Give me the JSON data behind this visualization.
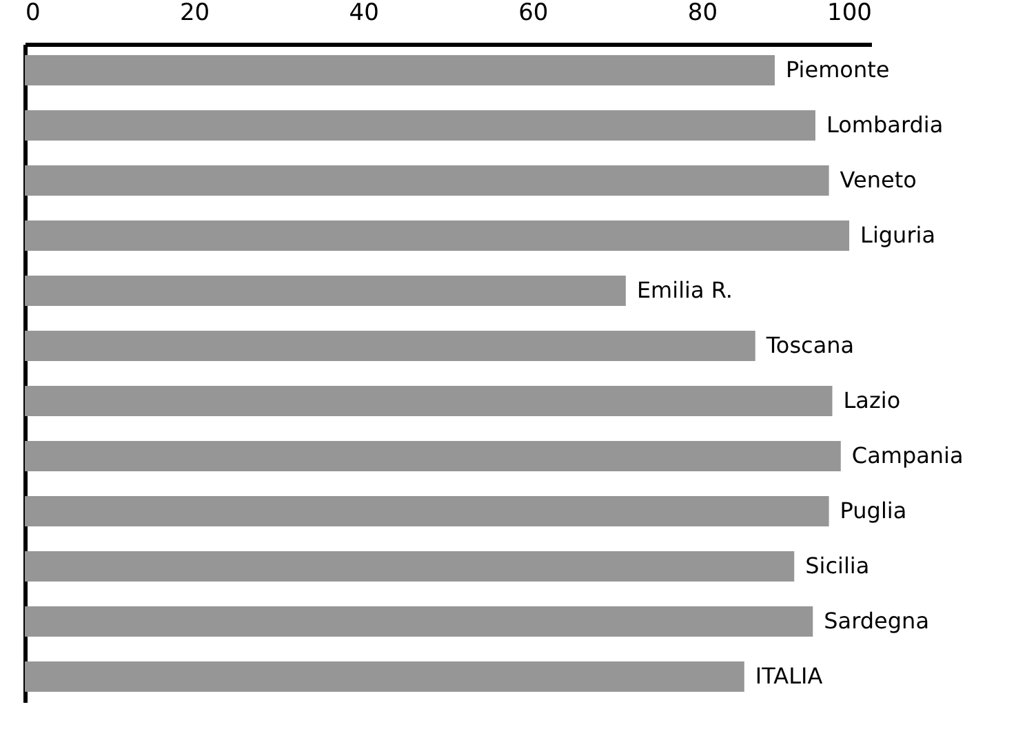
{
  "chart_data": {
    "type": "bar",
    "orientation": "horizontal",
    "categories": [
      "Piemonte",
      "Lombardia",
      "Veneto",
      "Liguria",
      "Emilia R.",
      "Toscana",
      "Lazio",
      "Campania",
      "Puglia",
      "Sicilia",
      "Sardegna",
      "ITALIA"
    ],
    "values": [
      88.6,
      93.4,
      95.0,
      97.4,
      71.0,
      86.3,
      95.4,
      96.4,
      95.0,
      90.9,
      93.1,
      85.0
    ],
    "color": "#969696",
    "xlim": [
      0,
      100
    ],
    "xticks": [
      0,
      20,
      40,
      60,
      80,
      100
    ]
  }
}
